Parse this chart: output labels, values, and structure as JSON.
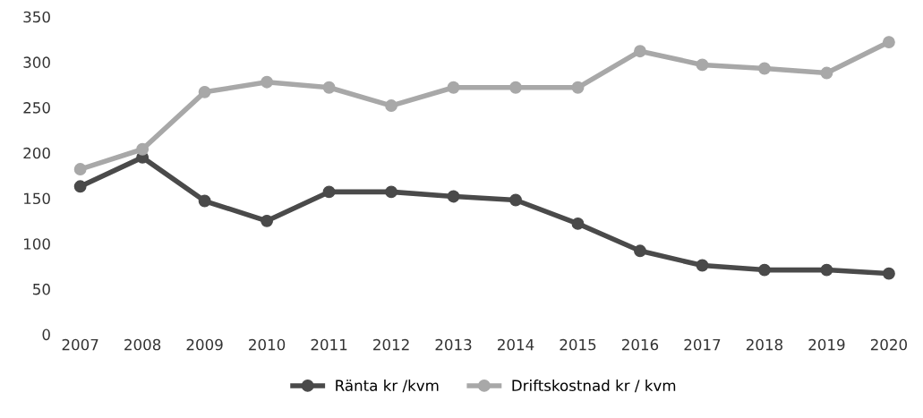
{
  "chart_data": {
    "type": "line",
    "categories": [
      "2007",
      "2008",
      "2009",
      "2010",
      "2011",
      "2012",
      "2013",
      "2014",
      "2015",
      "2016",
      "2017",
      "2018",
      "2019",
      "2020"
    ],
    "series": [
      {
        "name": "Ränta kr /kvm",
        "color": "#4a4a4a",
        "values": [
          163,
          195,
          147,
          125,
          157,
          157,
          152,
          148,
          122,
          92,
          76,
          71,
          71,
          67
        ]
      },
      {
        "name": "Driftskostnad kr / kvm",
        "color": "#a8a8a8",
        "values": [
          182,
          204,
          267,
          278,
          272,
          252,
          272,
          272,
          272,
          312,
          297,
          293,
          288,
          322
        ]
      }
    ],
    "ylim": [
      0,
      350
    ],
    "yticks": [
      0,
      50,
      100,
      150,
      200,
      250,
      300,
      350
    ],
    "grid": false,
    "legend": "bottom",
    "marker": "circle",
    "line_style": "solid"
  }
}
